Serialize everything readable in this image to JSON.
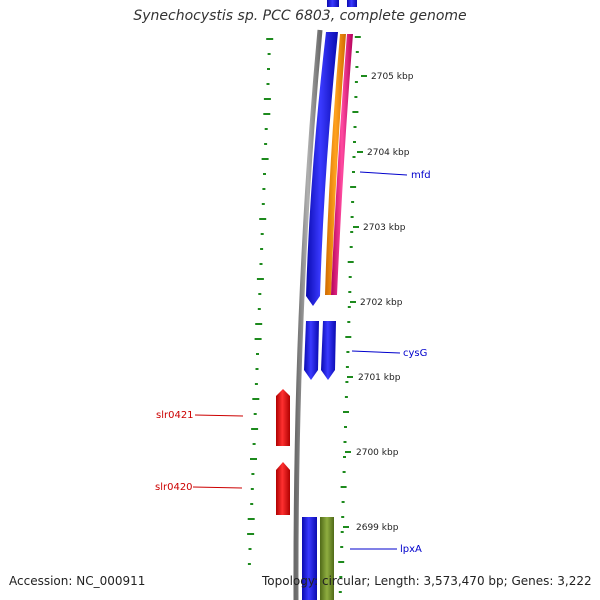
{
  "title": "Synechocystis sp. PCC 6803, complete genome",
  "footer": {
    "accession": "Accession: NC_000911",
    "summary": "Topology: circular; Length: 3,573,470 bp; Genes: 3,222"
  },
  "ticks": [
    "2705 kbp",
    "2704 kbp",
    "2703 kbp",
    "2702 kbp",
    "2701 kbp",
    "2700 kbp",
    "2699 kbp"
  ],
  "forward_gene_labels": [
    {
      "name": "mfd",
      "color": "#0000cc"
    },
    {
      "name": "cysG",
      "color": "#0000cc"
    },
    {
      "name": "lpxA",
      "color": "#0000cc"
    }
  ],
  "reverse_gene_labels": [
    {
      "name": "slr0421",
      "color": "#cc0000"
    },
    {
      "name": "slr0420",
      "color": "#cc0000"
    }
  ],
  "colors": {
    "backbone": "#8a8a8a",
    "forward_cds": "#1a1aee",
    "reverse_cds": "#ee1111",
    "orange_track": "#ff8c00",
    "pink_track": "#e8197a",
    "olive_track": "#6e8b2a",
    "green_dots": "#1d8a1d"
  }
}
